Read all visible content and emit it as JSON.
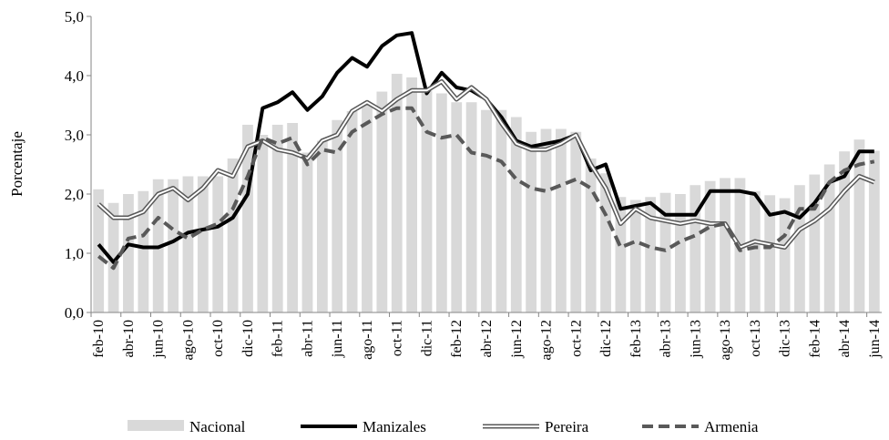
{
  "chart_data": {
    "type": "line",
    "y_label": "Porcentaje",
    "categories": [
      "feb-10",
      null,
      "abr-10",
      null,
      "jun-10",
      null,
      "ago-10",
      null,
      "oct-10",
      null,
      "dic-10",
      null,
      "feb-11",
      null,
      "abr-11",
      null,
      "jun-11",
      null,
      "ago-11",
      null,
      "oct-11",
      null,
      "dic-11",
      null,
      "feb-12",
      null,
      "abr-12",
      null,
      "jun-12",
      null,
      "ago-12",
      null,
      "oct-12",
      null,
      "dic-12",
      null,
      "feb-13",
      null,
      "abr-13",
      null,
      "jun-13",
      null,
      "ago-13",
      null,
      "oct-13",
      null,
      "dic-13",
      null,
      "feb-14",
      null,
      "abr-14",
      null,
      "jun-14"
    ],
    "series": [
      {
        "name": "Nacional",
        "kind": "bar",
        "color": "#d9d9d9",
        "values": [
          2.08,
          1.85,
          2.0,
          2.05,
          2.25,
          2.25,
          2.3,
          2.3,
          2.3,
          2.6,
          3.17,
          3.0,
          3.17,
          3.2,
          2.7,
          2.9,
          3.25,
          3.4,
          3.5,
          3.73,
          4.03,
          3.97,
          3.75,
          3.7,
          3.55,
          3.55,
          3.42,
          3.42,
          3.3,
          3.05,
          3.1,
          3.1,
          3.05,
          2.6,
          2.35,
          1.95,
          1.9,
          1.95,
          2.02,
          2.0,
          2.15,
          2.22,
          2.27,
          2.27,
          2.05,
          1.98,
          1.93,
          2.15,
          2.33,
          2.5,
          2.72,
          2.92,
          2.73
        ]
      },
      {
        "name": "Manizales",
        "kind": "solid",
        "color": "#000000",
        "values": [
          1.15,
          0.85,
          1.15,
          1.1,
          1.1,
          1.2,
          1.35,
          1.4,
          1.45,
          1.6,
          2.0,
          3.45,
          3.55,
          3.72,
          3.42,
          3.65,
          4.05,
          4.3,
          4.15,
          4.5,
          4.68,
          4.72,
          3.7,
          4.05,
          3.8,
          3.75,
          3.6,
          3.3,
          2.9,
          2.8,
          2.85,
          2.9,
          3.0,
          2.4,
          2.5,
          1.75,
          1.8,
          1.85,
          1.65,
          1.65,
          1.65,
          2.05,
          2.05,
          2.05,
          2.0,
          1.65,
          1.7,
          1.6,
          1.85,
          2.2,
          2.3,
          2.72,
          2.72
        ]
      },
      {
        "name": "Pereira",
        "kind": "double",
        "color": "#595959",
        "values": [
          1.83,
          1.6,
          1.6,
          1.7,
          2.0,
          2.1,
          1.9,
          2.1,
          2.4,
          2.3,
          2.8,
          2.9,
          2.75,
          2.7,
          2.6,
          2.9,
          3.0,
          3.4,
          3.55,
          3.4,
          3.6,
          3.75,
          3.75,
          3.9,
          3.6,
          3.8,
          3.6,
          3.2,
          2.85,
          2.75,
          2.75,
          2.85,
          3.0,
          2.5,
          2.1,
          1.5,
          1.75,
          1.6,
          1.55,
          1.5,
          1.55,
          1.5,
          1.5,
          1.1,
          1.2,
          1.15,
          1.1,
          1.4,
          1.55,
          1.75,
          2.05,
          2.3,
          2.2
        ]
      },
      {
        "name": "Armenia",
        "kind": "dashed",
        "color": "#595959",
        "values": [
          0.95,
          0.75,
          1.25,
          1.3,
          1.6,
          1.4,
          1.25,
          1.4,
          1.5,
          1.75,
          2.3,
          2.95,
          2.85,
          2.95,
          2.5,
          2.75,
          2.7,
          3.05,
          3.2,
          3.35,
          3.45,
          3.45,
          3.05,
          2.95,
          3.0,
          2.7,
          2.65,
          2.55,
          2.25,
          2.1,
          2.05,
          2.15,
          2.25,
          2.1,
          1.65,
          1.1,
          1.2,
          1.1,
          1.05,
          1.2,
          1.3,
          1.45,
          1.5,
          1.05,
          1.1,
          1.1,
          1.3,
          1.75,
          1.75,
          2.2,
          2.4,
          2.5,
          2.55
        ]
      }
    ],
    "ylim": [
      0,
      5
    ],
    "yticks": [
      {
        "value": 0,
        "label": "0,0"
      },
      {
        "value": 1,
        "label": "1,0"
      },
      {
        "value": 2,
        "label": "2,0"
      },
      {
        "value": 3,
        "label": "3,0"
      },
      {
        "value": 4,
        "label": "4,0"
      },
      {
        "value": 5,
        "label": "5,0"
      }
    ],
    "legend": "bottom"
  }
}
